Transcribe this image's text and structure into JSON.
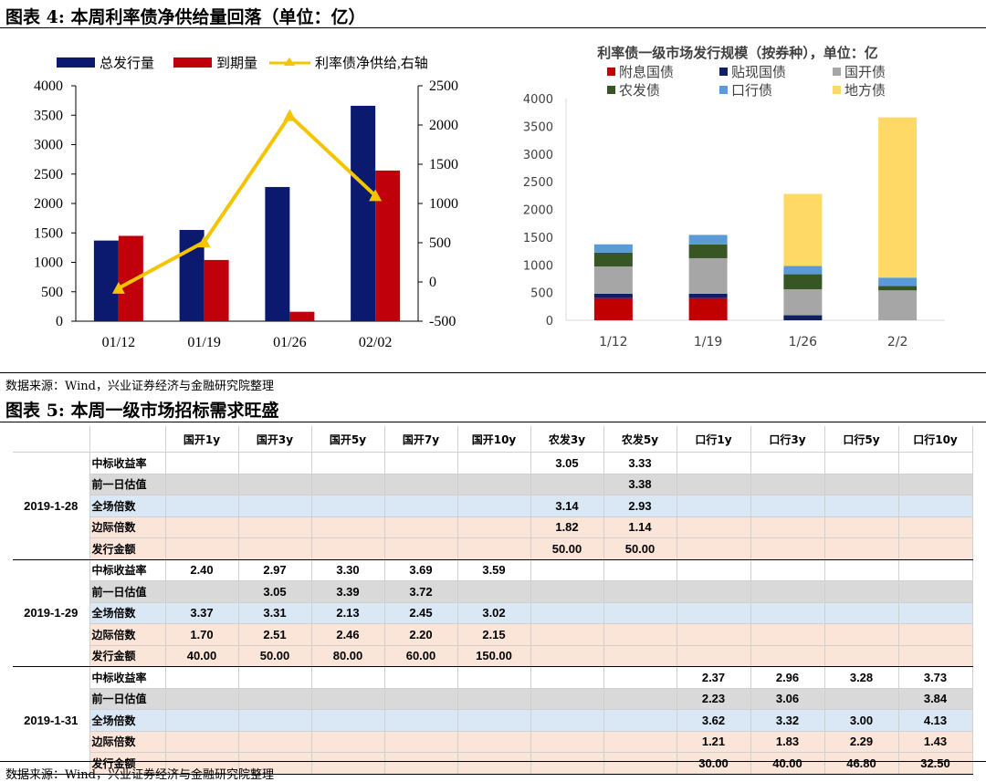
{
  "fig4": {
    "title": "图表 4:  本周利率债净供给量回落（单位：亿）",
    "legend": [
      "总发行量",
      "到期量",
      "利率债净供给,右轴"
    ],
    "source": "数据来源：Wind，兴业证券经济与金融研究院整理"
  },
  "fig5": {
    "title": "图表 5:  本周一级市场招标需求旺盛",
    "source": "数据来源：Wind，兴业证券经济与金融研究院整理"
  },
  "colors": {
    "issuance": "#0b1a6e",
    "maturity": "#c0000a",
    "net_line": "#f5c400",
    "fuxi": "#c00000",
    "tiexian": "#0e1f63",
    "guokai": "#a6a6a6",
    "nongfa": "#375623",
    "kouhang": "#5b9bd5",
    "difang": "#ffd966"
  },
  "chart_data": [
    {
      "type": "bar",
      "categories": [
        "01/12",
        "01/19",
        "01/26",
        "02/02"
      ],
      "series": [
        {
          "name": "总发行量",
          "values": [
            1370,
            1550,
            2280,
            3660
          ],
          "axis": "left"
        },
        {
          "name": "到期量",
          "values": [
            1450,
            1040,
            160,
            2560
          ],
          "axis": "left"
        },
        {
          "name": "利率债净供给,右轴",
          "type": "line",
          "values": [
            -80,
            510,
            2120,
            1100
          ],
          "axis": "right"
        }
      ],
      "ylim": [
        0,
        4000
      ],
      "yticks": [
        "0",
        "500",
        "1000",
        "1500",
        "2000",
        "2500",
        "3000",
        "3500",
        "4000"
      ],
      "y2lim": [
        -500,
        2500
      ],
      "y2ticks": [
        "-500",
        "0",
        "500",
        "1000",
        "1500",
        "2000",
        "2500"
      ],
      "legend_position": "top"
    },
    {
      "type": "bar",
      "stacked": true,
      "title": "利率债一级市场发行规模（按券种），单位：亿",
      "categories": [
        "1/12",
        "1/19",
        "1/26",
        "2/2"
      ],
      "series": [
        {
          "name": "附息国债",
          "values": [
            400,
            400,
            0,
            0
          ]
        },
        {
          "name": "贴现国债",
          "values": [
            80,
            80,
            90,
            0
          ]
        },
        {
          "name": "国开债",
          "values": [
            490,
            640,
            470,
            540
          ]
        },
        {
          "name": "农发债",
          "values": [
            250,
            250,
            270,
            80
          ]
        },
        {
          "name": "口行债",
          "values": [
            150,
            170,
            150,
            150
          ]
        },
        {
          "name": "地方债",
          "values": [
            0,
            0,
            1300,
            2890
          ]
        }
      ],
      "ylim": [
        0,
        4000
      ],
      "yticks": [
        "0",
        "500",
        "1000",
        "1500",
        "2000",
        "2500",
        "3000",
        "3500",
        "4000"
      ],
      "legend_position": "top"
    }
  ],
  "table": {
    "headers": [
      "国开1y",
      "国开3y",
      "国开5y",
      "国开7y",
      "国开10y",
      "农发3y",
      "农发5y",
      "口行1y",
      "口行3y",
      "口行5y",
      "口行10y"
    ],
    "row_labels": [
      "中标收益率",
      "前一日估值",
      "全场倍数",
      "边际倍数",
      "发行金额"
    ],
    "groups": [
      {
        "date": "2019-1-28",
        "rows": [
          [
            "",
            "",
            "",
            "",
            "",
            "3.05",
            "3.33",
            "",
            "",
            "",
            ""
          ],
          [
            "",
            "",
            "",
            "",
            "",
            "",
            "3.38",
            "",
            "",
            "",
            ""
          ],
          [
            "",
            "",
            "",
            "",
            "",
            "3.14",
            "2.93",
            "",
            "",
            "",
            ""
          ],
          [
            "",
            "",
            "",
            "",
            "",
            "1.82",
            "1.14",
            "",
            "",
            "",
            ""
          ],
          [
            "",
            "",
            "",
            "",
            "",
            "50.00",
            "50.00",
            "",
            "",
            "",
            ""
          ]
        ]
      },
      {
        "date": "2019-1-29",
        "rows": [
          [
            "2.40",
            "2.97",
            "3.30",
            "3.69",
            "3.59",
            "",
            "",
            "",
            "",
            "",
            ""
          ],
          [
            "",
            "3.05",
            "3.39",
            "3.72",
            "",
            "",
            "",
            "",
            "",
            "",
            ""
          ],
          [
            "3.37",
            "3.31",
            "2.13",
            "2.45",
            "3.02",
            "",
            "",
            "",
            "",
            "",
            ""
          ],
          [
            "1.70",
            "2.51",
            "2.46",
            "2.20",
            "2.15",
            "",
            "",
            "",
            "",
            "",
            ""
          ],
          [
            "40.00",
            "50.00",
            "80.00",
            "60.00",
            "150.00",
            "",
            "",
            "",
            "",
            "",
            ""
          ]
        ]
      },
      {
        "date": "2019-1-31",
        "rows": [
          [
            "",
            "",
            "",
            "",
            "",
            "",
            "",
            "2.37",
            "2.96",
            "3.28",
            "3.73"
          ],
          [
            "",
            "",
            "",
            "",
            "",
            "",
            "",
            "2.23",
            "3.06",
            "",
            "3.84"
          ],
          [
            "",
            "",
            "",
            "",
            "",
            "",
            "",
            "3.62",
            "3.32",
            "3.00",
            "4.13"
          ],
          [
            "",
            "",
            "",
            "",
            "",
            "",
            "",
            "1.21",
            "1.83",
            "2.29",
            "1.43"
          ],
          [
            "",
            "",
            "",
            "",
            "",
            "",
            "",
            "30.00",
            "40.00",
            "46.80",
            "32.50"
          ]
        ]
      }
    ]
  }
}
